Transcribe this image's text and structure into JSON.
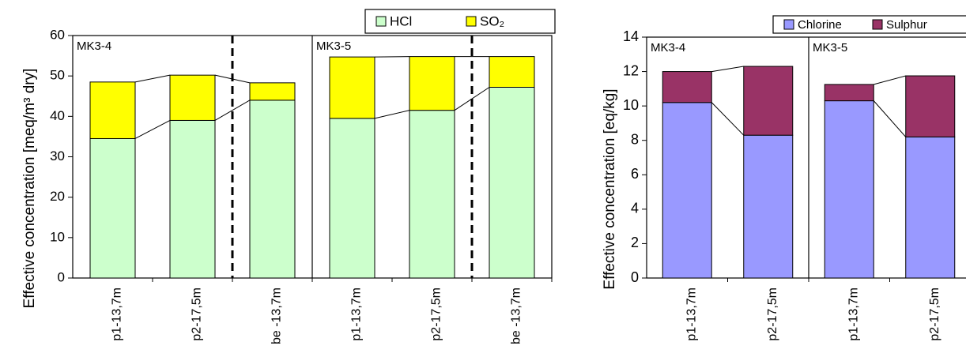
{
  "chart_data": [
    {
      "type": "bar",
      "stacked": true,
      "y_label": "Effective concentration [meq/m³ dry]",
      "categories": [
        "p1-13,7m",
        "p2-17,5m",
        "be -13,7m",
        "p1-13,7m",
        "p2-17,5m",
        "be -13,7m"
      ],
      "groups": [
        "MK3-4",
        "MK3-5"
      ],
      "dashed_dividers": true,
      "series": [
        {
          "name": "HCl",
          "color": "#ccffcc",
          "values": [
            34.5,
            39,
            44,
            39.5,
            41.5,
            47.2
          ]
        },
        {
          "name": "SO₂",
          "color": "#ffff00",
          "values": [
            14,
            11.2,
            4.3,
            15.2,
            13.3,
            7.6
          ]
        }
      ],
      "ylim": [
        0,
        60
      ],
      "yticks": [
        0,
        10,
        20,
        30,
        40,
        50,
        60
      ]
    },
    {
      "type": "bar",
      "stacked": true,
      "y_label": "Effective concentration [eq/kg]",
      "categories": [
        "p1-13,7m",
        "p2-17,5m",
        "p1-13,7m",
        "p2-17,5m"
      ],
      "groups": [
        "MK3-4",
        "MK3-5"
      ],
      "dashed_dividers": false,
      "series": [
        {
          "name": "Chlorine",
          "color": "#9999ff",
          "values": [
            10.2,
            8.3,
            10.3,
            8.2
          ]
        },
        {
          "name": "Sulphur",
          "color": "#993366",
          "values": [
            1.8,
            4.0,
            0.95,
            3.55
          ]
        }
      ],
      "ylim": [
        0,
        14
      ],
      "yticks": [
        0,
        2,
        4,
        6,
        8,
        10,
        12,
        14
      ]
    }
  ]
}
